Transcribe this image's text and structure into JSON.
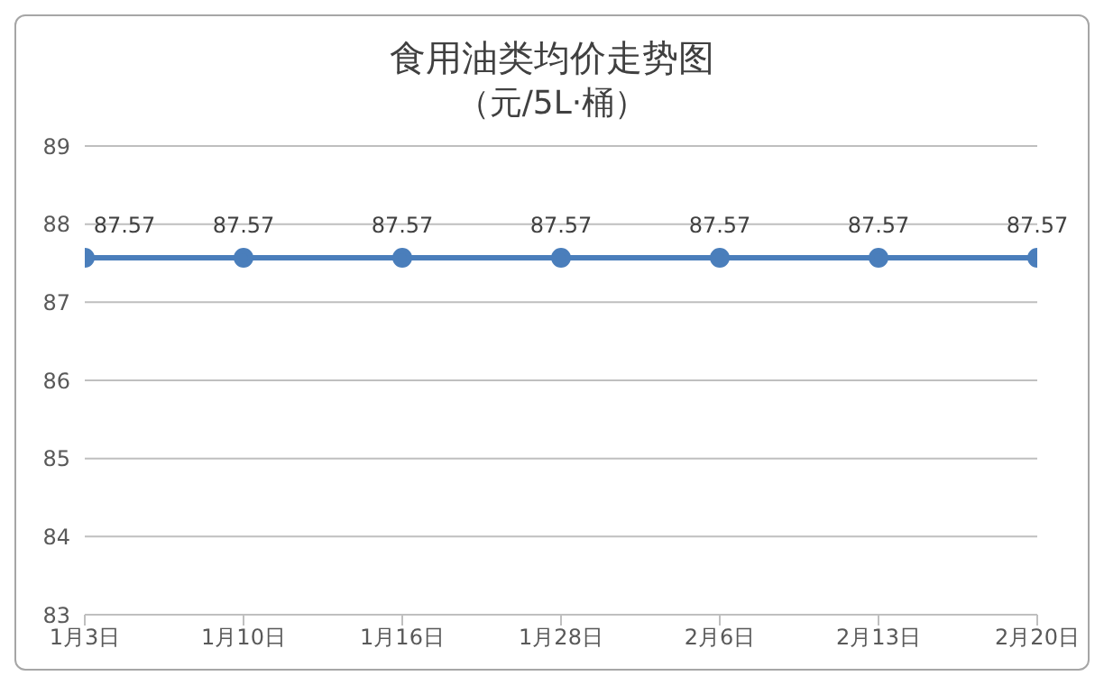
{
  "chart_data": {
    "type": "line",
    "title": "食用油类均价走势图",
    "subtitle": "（元/5L·桶）",
    "categories": [
      "1月3日",
      "1月10日",
      "1月16日",
      "1月28日",
      "2月6日",
      "2月13日",
      "2月20日"
    ],
    "series": [
      {
        "color": "#4a7ebb",
        "values": [
          87.57,
          87.57,
          87.57,
          87.57,
          87.57,
          87.57,
          87.57
        ]
      }
    ],
    "ylim": [
      83,
      89
    ],
    "yticks": [
      83,
      84,
      85,
      86,
      87,
      88,
      89
    ],
    "grid": "y",
    "marker": "circle",
    "line_style": "solid",
    "data_labels": true
  }
}
